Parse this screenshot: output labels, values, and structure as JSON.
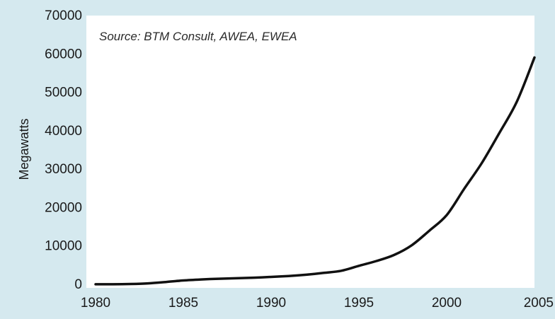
{
  "chart_data": {
    "type": "line",
    "title": "",
    "annotation": "Source: BTM Consult, AWEA, EWEA",
    "xlabel": "",
    "ylabel": "Megawatts",
    "xlim": [
      1980,
      2005
    ],
    "ylim": [
      0,
      70000
    ],
    "x_ticks": [
      1980,
      1985,
      1990,
      1995,
      2000,
      2005
    ],
    "y_ticks": [
      0,
      10000,
      20000,
      30000,
      40000,
      50000,
      60000,
      70000
    ],
    "grid": false,
    "legend": "none",
    "series": [
      {
        "color": "#111111",
        "x": [
          1980,
          1981,
          1982,
          1983,
          1984,
          1985,
          1986,
          1987,
          1988,
          1989,
          1990,
          1991,
          1992,
          1993,
          1994,
          1995,
          1996,
          1997,
          1998,
          1999,
          2000,
          2001,
          2002,
          2003,
          2004,
          2005
        ],
        "y": [
          10,
          25,
          90,
          250,
          600,
          1020,
          1270,
          1450,
          1580,
          1730,
          1930,
          2170,
          2510,
          2990,
          3530,
          4820,
          6070,
          7640,
          10150,
          13930,
          18040,
          24900,
          31600,
          39430,
          47620,
          59080
        ]
      }
    ]
  }
}
